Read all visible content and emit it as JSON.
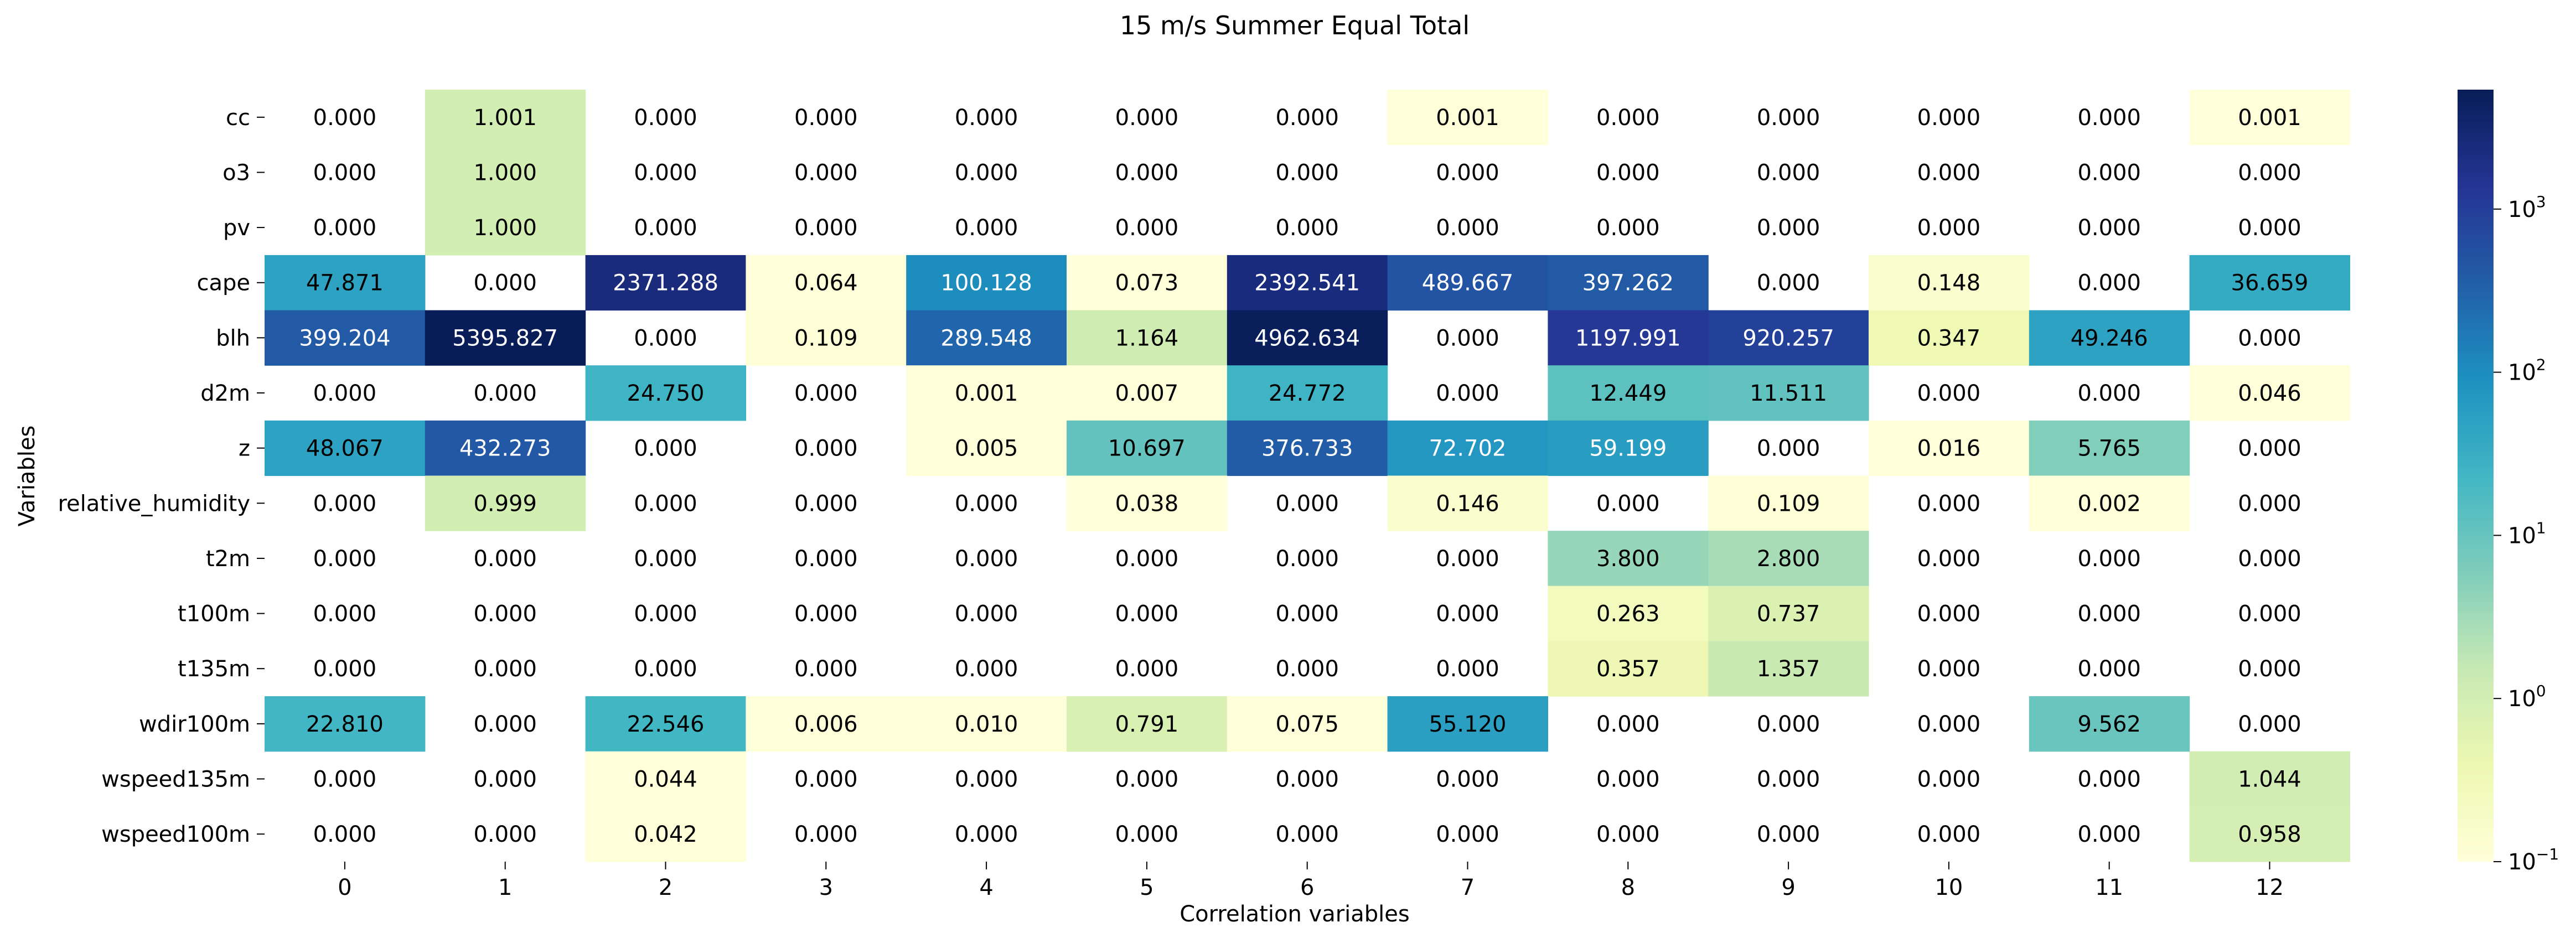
{
  "chart_data": {
    "type": "heatmap",
    "title": "15 m/s Summer Equal Total",
    "xlabel": "Correlation variables",
    "ylabel": "Variables",
    "x_labels": [
      "0",
      "1",
      "2",
      "3",
      "4",
      "5",
      "6",
      "7",
      "8",
      "9",
      "10",
      "11",
      "12"
    ],
    "y_labels": [
      "cc",
      "o3",
      "pv",
      "cape",
      "blh",
      "d2m",
      "z",
      "relative_humidity",
      "t2m",
      "t100m",
      "t135m",
      "wdir100m",
      "wspeed135m",
      "wspeed100m"
    ],
    "values": [
      [
        0.0,
        1.001,
        0.0,
        0.0,
        0.0,
        0.0,
        0.0,
        0.001,
        0.0,
        0.0,
        0.0,
        0.0,
        0.001
      ],
      [
        0.0,
        1.0,
        0.0,
        0.0,
        0.0,
        0.0,
        0.0,
        0.0,
        0.0,
        0.0,
        0.0,
        0.0,
        0.0
      ],
      [
        0.0,
        1.0,
        0.0,
        0.0,
        0.0,
        0.0,
        0.0,
        0.0,
        0.0,
        0.0,
        0.0,
        0.0,
        0.0
      ],
      [
        47.871,
        0.0,
        2371.288,
        0.064,
        100.128,
        0.073,
        2392.541,
        489.667,
        397.262,
        0.0,
        0.148,
        0.0,
        36.659
      ],
      [
        399.204,
        5395.827,
        0.0,
        0.109,
        289.548,
        1.164,
        4962.634,
        0.0,
        1197.991,
        920.257,
        0.347,
        49.246,
        0.0
      ],
      [
        0.0,
        0.0,
        24.75,
        0.0,
        0.001,
        0.007,
        24.772,
        0.0,
        12.449,
        11.511,
        0.0,
        0.0,
        0.046
      ],
      [
        48.067,
        432.273,
        0.0,
        0.0,
        0.005,
        10.697,
        376.733,
        72.702,
        59.199,
        0.0,
        0.016,
        5.765,
        0.0
      ],
      [
        0.0,
        0.999,
        0.0,
        0.0,
        0.0,
        0.038,
        0.0,
        0.146,
        0.0,
        0.109,
        0.0,
        0.002,
        0.0
      ],
      [
        0.0,
        0.0,
        0.0,
        0.0,
        0.0,
        0.0,
        0.0,
        0.0,
        3.8,
        2.8,
        0.0,
        0.0,
        0.0
      ],
      [
        0.0,
        0.0,
        0.0,
        0.0,
        0.0,
        0.0,
        0.0,
        0.0,
        0.263,
        0.737,
        0.0,
        0.0,
        0.0
      ],
      [
        0.0,
        0.0,
        0.0,
        0.0,
        0.0,
        0.0,
        0.0,
        0.0,
        0.357,
        1.357,
        0.0,
        0.0,
        0.0
      ],
      [
        22.81,
        0.0,
        22.546,
        0.006,
        0.01,
        0.791,
        0.075,
        55.12,
        0.0,
        0.0,
        0.0,
        9.562,
        0.0
      ],
      [
        0.0,
        0.0,
        0.044,
        0.0,
        0.0,
        0.0,
        0.0,
        0.0,
        0.0,
        0.0,
        0.0,
        0.0,
        1.044
      ],
      [
        0.0,
        0.0,
        0.042,
        0.0,
        0.0,
        0.0,
        0.0,
        0.0,
        0.0,
        0.0,
        0.0,
        0.0,
        0.958
      ]
    ],
    "colorscale": "YlGnBu",
    "color_scale_type": "log",
    "color_range": [
      0.1,
      5395.827
    ],
    "colorbar_ticks": [
      {
        "value": 0.1,
        "base": "10",
        "exp": "−1"
      },
      {
        "value": 1,
        "base": "10",
        "exp": "0"
      },
      {
        "value": 10,
        "base": "10",
        "exp": "1"
      },
      {
        "value": 100,
        "base": "10",
        "exp": "2"
      },
      {
        "value": 1000,
        "base": "10",
        "exp": "3"
      }
    ],
    "masked_value_note": "zero cells are blank (masked)",
    "number_format_decimals": 3,
    "grid": false,
    "legend": "none; colorbar on right"
  }
}
